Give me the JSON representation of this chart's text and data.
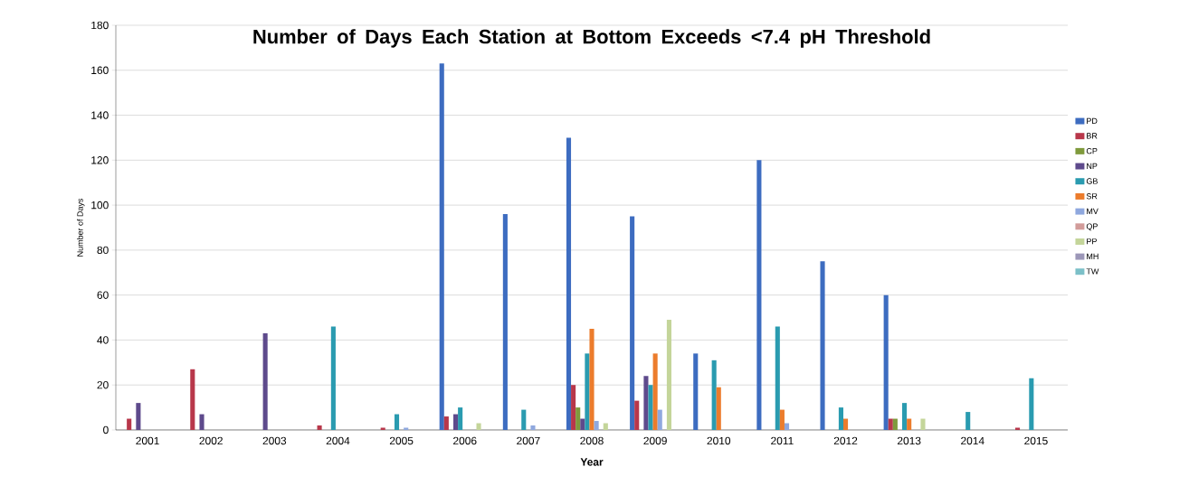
{
  "chart_data": {
    "type": "bar",
    "title": "Number of Days Each Station at Bottom Exceeds <7.4 pH Threshold",
    "xlabel": "Year",
    "ylabel": "Number of Days",
    "categories": [
      "2001",
      "2002",
      "2003",
      "2004",
      "2005",
      "2006",
      "2007",
      "2008",
      "2009",
      "2010",
      "2011",
      "2012",
      "2013",
      "2014",
      "2015"
    ],
    "series": [
      {
        "name": "PD",
        "color": "#3d6cc0",
        "values": [
          null,
          null,
          null,
          null,
          null,
          163,
          96,
          130,
          95,
          34,
          120,
          75,
          60,
          null,
          null
        ]
      },
      {
        "name": "BR",
        "color": "#b8374a",
        "values": [
          5,
          27,
          null,
          2,
          1,
          6,
          null,
          20,
          13,
          null,
          null,
          null,
          5,
          null,
          1
        ]
      },
      {
        "name": "CP",
        "color": "#7f9a3c",
        "values": [
          null,
          null,
          null,
          null,
          null,
          null,
          null,
          10,
          null,
          null,
          null,
          null,
          5,
          null,
          null
        ]
      },
      {
        "name": "NP",
        "color": "#5e4a8c",
        "values": [
          12,
          7,
          43,
          null,
          null,
          7,
          null,
          5,
          24,
          null,
          null,
          null,
          null,
          null,
          null
        ]
      },
      {
        "name": "GB",
        "color": "#2a9bb0",
        "values": [
          null,
          null,
          null,
          46,
          7,
          10,
          9,
          34,
          20,
          31,
          46,
          10,
          12,
          8,
          23
        ]
      },
      {
        "name": "SR",
        "color": "#ec7c2c",
        "values": [
          null,
          null,
          null,
          null,
          null,
          null,
          null,
          45,
          34,
          19,
          9,
          5,
          5,
          null,
          null
        ]
      },
      {
        "name": "MV",
        "color": "#8fa8de",
        "values": [
          null,
          null,
          null,
          null,
          1,
          null,
          2,
          4,
          9,
          null,
          3,
          null,
          null,
          null,
          null
        ]
      },
      {
        "name": "QP",
        "color": "#d29c9a",
        "values": [
          null,
          null,
          null,
          null,
          null,
          null,
          null,
          null,
          null,
          null,
          null,
          null,
          null,
          null,
          null
        ]
      },
      {
        "name": "PP",
        "color": "#c4d59a",
        "values": [
          null,
          null,
          null,
          null,
          null,
          3,
          null,
          3,
          49,
          null,
          null,
          null,
          5,
          null,
          null
        ]
      },
      {
        "name": "MH",
        "color": "#9c97b8",
        "values": [
          null,
          null,
          null,
          null,
          null,
          null,
          null,
          null,
          null,
          null,
          null,
          null,
          null,
          null,
          null
        ]
      },
      {
        "name": "TW",
        "color": "#7cc0c8",
        "values": [
          null,
          null,
          null,
          null,
          null,
          null,
          null,
          null,
          null,
          null,
          null,
          null,
          null,
          null,
          null
        ]
      }
    ],
    "ylim": [
      0,
      180
    ],
    "yticks": [
      0,
      20,
      40,
      60,
      80,
      100,
      120,
      140,
      160,
      180
    ],
    "grid": "y",
    "legend": "right"
  }
}
